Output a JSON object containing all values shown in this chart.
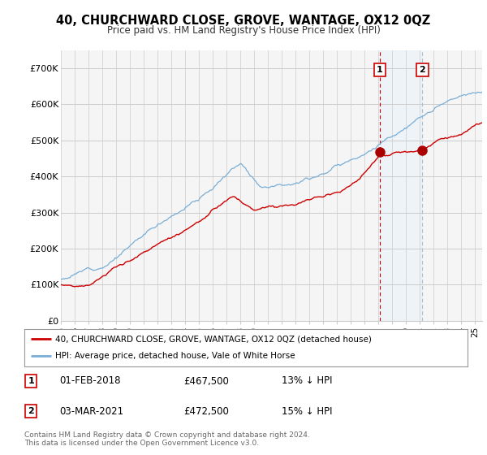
{
  "title": "40, CHURCHWARD CLOSE, GROVE, WANTAGE, OX12 0QZ",
  "subtitle": "Price paid vs. HM Land Registry's House Price Index (HPI)",
  "ylabel_ticks": [
    "£0",
    "£100K",
    "£200K",
    "£300K",
    "£400K",
    "£500K",
    "£600K",
    "£700K"
  ],
  "ylim": [
    0,
    750000
  ],
  "xlim_start": 1995.0,
  "xlim_end": 2025.5,
  "legend_line1": "40, CHURCHWARD CLOSE, GROVE, WANTAGE, OX12 0QZ (detached house)",
  "legend_line2": "HPI: Average price, detached house, Vale of White Horse",
  "sale1_label": "1",
  "sale1_date": "01-FEB-2018",
  "sale1_price": "£467,500",
  "sale1_hpi": "13% ↓ HPI",
  "sale1_x": 2018.08,
  "sale1_y": 467500,
  "sale2_label": "2",
  "sale2_date": "03-MAR-2021",
  "sale2_price": "£472,500",
  "sale2_hpi": "15% ↓ HPI",
  "sale2_x": 2021.17,
  "sale2_y": 472500,
  "line_color_red": "#cc0000",
  "line_color_blue": "#7aaed6",
  "vline1_color": "#cc0000",
  "vline2_color": "#aabbcc",
  "shade_color": "#ddeeff",
  "marker_color": "#aa0000",
  "background_color": "#f5f5f5",
  "grid_color": "#cccccc",
  "footer": "Contains HM Land Registry data © Crown copyright and database right 2024.\nThis data is licensed under the Open Government Licence v3.0."
}
